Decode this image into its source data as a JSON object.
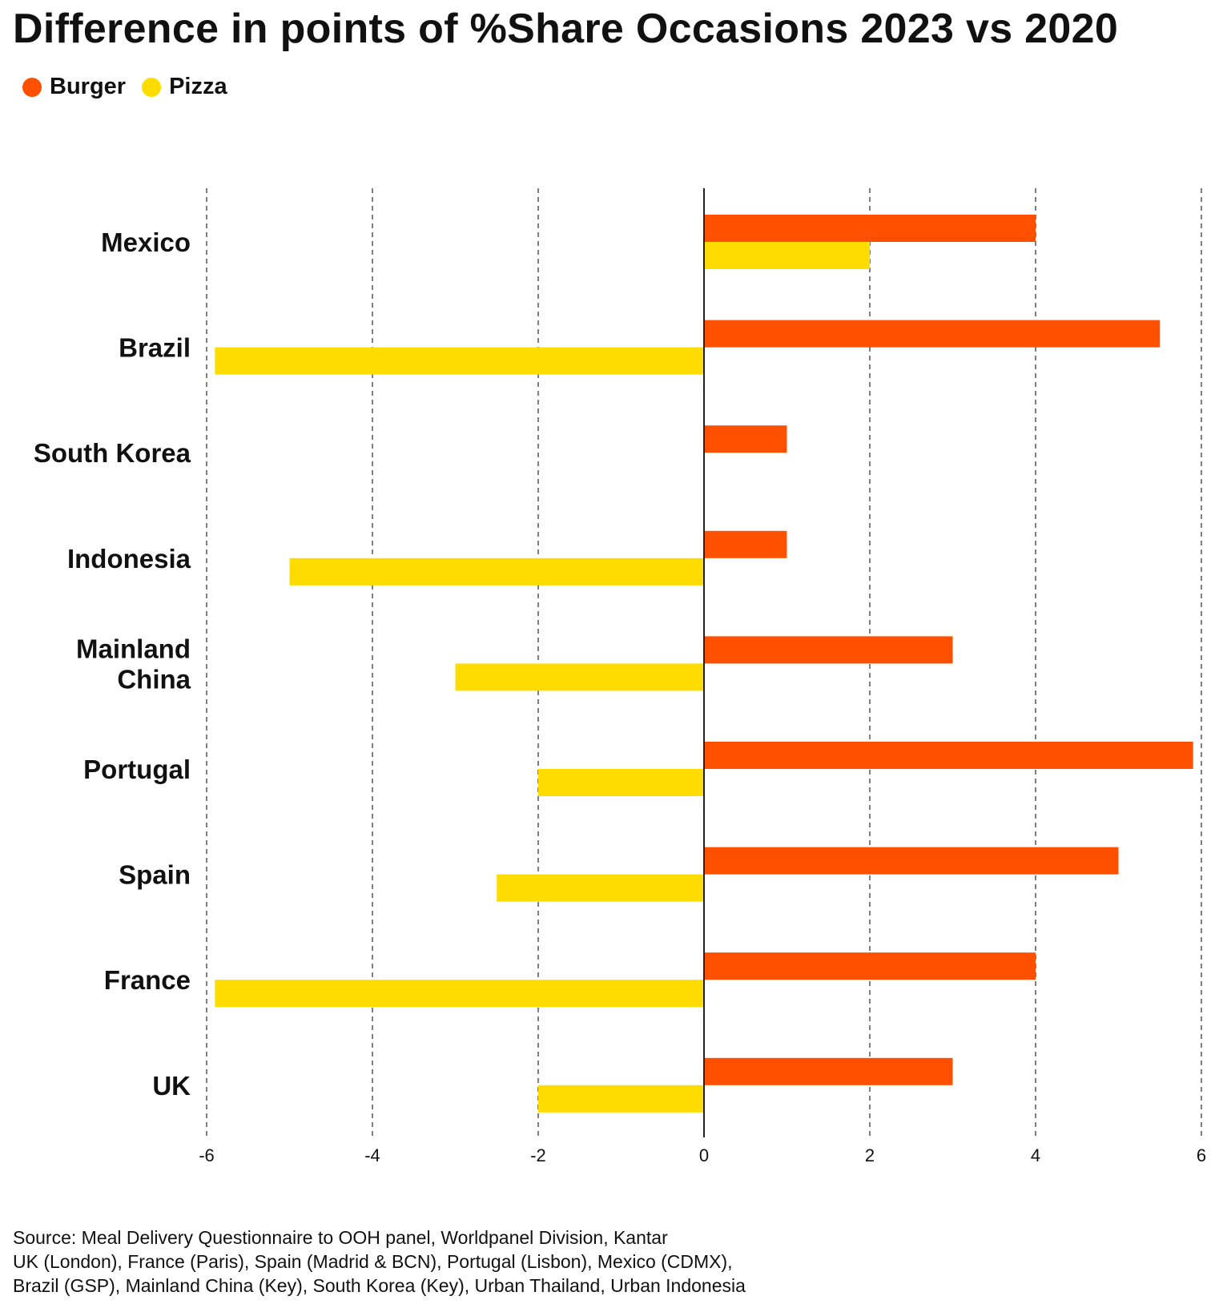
{
  "chart_data": {
    "type": "bar",
    "orientation": "horizontal",
    "title": "Difference in points of %Share Occasions 2023 vs 2020",
    "categories": [
      "Mexico",
      "Brazil",
      "South Korea",
      "Indonesia",
      "Mainland China",
      "Portugal",
      "Spain",
      "France",
      "UK"
    ],
    "category_label_lines": [
      [
        "Mexico"
      ],
      [
        "Brazil"
      ],
      [
        "South Korea"
      ],
      [
        "Indonesia"
      ],
      [
        "Mainland",
        "China"
      ],
      [
        "Portugal"
      ],
      [
        "Spain"
      ],
      [
        "France"
      ],
      [
        "UK"
      ]
    ],
    "series": [
      {
        "name": "Burger",
        "color": "#ff5000",
        "values": [
          4.0,
          5.5,
          1.0,
          1.0,
          3.0,
          5.9,
          5.0,
          4.0,
          3.0
        ]
      },
      {
        "name": "Pizza",
        "color": "#ffdc00",
        "values": [
          2.0,
          -5.9,
          null,
          -5.0,
          -3.0,
          -2.0,
          -2.5,
          -5.9,
          -2.0
        ]
      }
    ],
    "xlim": [
      -6,
      6
    ],
    "xticks": [
      -6,
      -4,
      -2,
      0,
      2,
      4,
      6
    ],
    "tick_labels": [
      "-6",
      "-4",
      "-2",
      "0",
      "2",
      "4",
      "6"
    ],
    "grid": "vertical dashed",
    "legend_position": "top-left"
  },
  "source_lines": [
    "Source: Meal Delivery Questionnaire to OOH panel, Worldpanel Division, Kantar",
    "UK (London), France (Paris), Spain (Madrid & BCN), Portugal (Lisbon), Mexico (CDMX),",
    "Brazil (GSP), Mainland China (Key), South Korea (Key), Urban Thailand, Urban Indonesia"
  ]
}
